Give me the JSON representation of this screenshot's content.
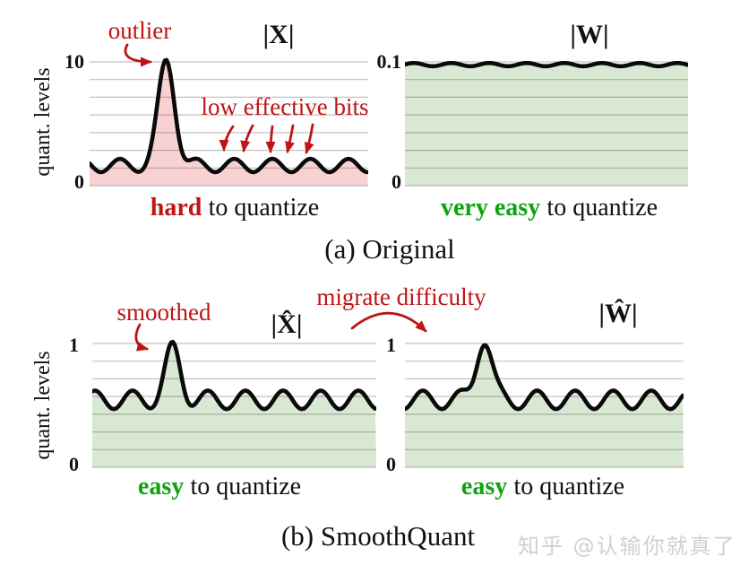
{
  "panels": {
    "a_left": {
      "title": "|X|",
      "y_max": "10",
      "y_min": "0",
      "axis_label": "quant. levels",
      "caption_em": "hard",
      "caption_rest": "to quantize",
      "wave": {
        "ymax": 10,
        "base": 1.63,
        "amp": 0.54,
        "period": 42.5,
        "phase": 34,
        "spike_x": 86,
        "spike_amp": 8.43,
        "spike_sigma": 9.2
      }
    },
    "a_right": {
      "title": "|W|",
      "y_max": "0.1",
      "y_min": "0",
      "caption_em": "very easy",
      "caption_rest": "to quantize",
      "wave": {
        "ymax": 0.1,
        "base": 0.0978,
        "amp": 0.0013,
        "period": 42,
        "phase": 10,
        "spike_x": 0,
        "spike_amp": 0,
        "spike_sigma": 1
      }
    },
    "b_left": {
      "title": "|X̂|",
      "y_max": "1",
      "y_min": "0",
      "axis_label": "quant. levels",
      "caption_em": "easy",
      "caption_rest": "to quantize",
      "wave": {
        "ymax": 1,
        "base": 0.545,
        "amp": 0.075,
        "period": 42,
        "phase": 45,
        "spike_x": 90,
        "spike_amp": 0.4,
        "spike_sigma": 8.5
      }
    },
    "b_right": {
      "title": "|Ŵ|",
      "y_max": "1",
      "y_min": "0",
      "caption_em": "easy",
      "caption_rest": "to quantize",
      "wave": {
        "ymax": 1,
        "base": 0.545,
        "amp": 0.075,
        "period": 42.5,
        "phase": 20,
        "spike_x": 88,
        "spike_amp": 0.5,
        "spike_sigma": 8.5
      }
    }
  },
  "annotations": {
    "outlier": "outlier",
    "low_effective_bits": "low effective bits",
    "smoothed": "smoothed",
    "migrate_difficulty": "migrate difficulty"
  },
  "row_captions": {
    "a": "(a) Original",
    "b": "(b) SmoothQuant"
  },
  "watermark": "知乎 @认输你就真了",
  "colors": {
    "annotation_red": "#be1414",
    "green_text": "#10a310",
    "pink_fill": "#f8d2d2",
    "green_fill": "#d8e8d2",
    "curve": "#0a0a0a",
    "grid": "rgba(0,0,0,0.24)",
    "watermark_gray": "#d0d0d0"
  },
  "chart_data": [
    {
      "type": "area",
      "title": "|X|",
      "ylabel": "quant. levels",
      "ylim": [
        0,
        10
      ],
      "y_ticks": [
        "0",
        "10"
      ],
      "series_note": "small oscillation between ~1 and ~2.2 with one outlier spike reaching 10",
      "gridlines": 8
    },
    {
      "type": "area",
      "title": "|W|",
      "ylim": [
        0,
        0.1
      ],
      "y_ticks": [
        "0",
        "0.1"
      ],
      "series_note": "nearly flat ripple at ~0.097",
      "gridlines": 8
    },
    {
      "type": "area",
      "title": "|X̂|",
      "ylabel": "quant. levels",
      "ylim": [
        0,
        1
      ],
      "y_ticks": [
        "0",
        "1"
      ],
      "series_note": "oscillation between ~0.47 and ~0.62 with smoothed spike reaching ~1",
      "gridlines": 8
    },
    {
      "type": "area",
      "title": "|Ŵ|",
      "ylim": [
        0,
        1
      ],
      "y_ticks": [
        "0",
        "1"
      ],
      "series_note": "oscillation between ~0.47 and ~0.62 with spike reaching ~1",
      "gridlines": 8
    }
  ]
}
